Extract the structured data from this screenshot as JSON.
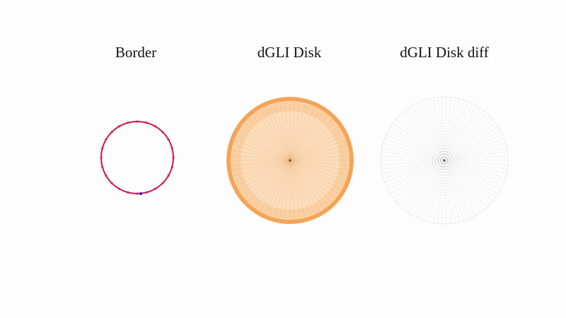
{
  "panels": [
    {
      "id": "border",
      "title": "Border"
    },
    {
      "id": "disk",
      "title": "dGLI Disk"
    },
    {
      "id": "diff",
      "title": "dGLI Disk diff"
    }
  ],
  "colors": {
    "background": "#fdfdfd",
    "border_line": "#c2185b",
    "border_markers": "#e01a4f",
    "border_marker_highlight": "#2222cc",
    "disk_fill_light": "#fbe2c6",
    "disk_fill_mid": "#f8c48e",
    "disk_ring": "#f29a45",
    "disk_rim": "#fcdcb8",
    "diff_lines": "#c9c9c9",
    "center_dot": "#555555"
  },
  "icons": {
    "border_panel": "circle-outline-with-markers",
    "disk_panel": "filled-disk-with-radial-lines",
    "diff_panel": "radial-line-disk"
  }
}
